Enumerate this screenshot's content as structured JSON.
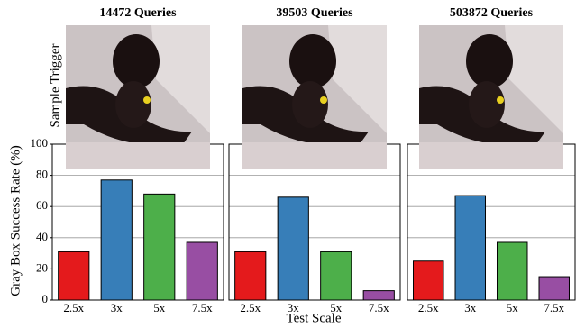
{
  "figure": {
    "ylabel": "Gray Box Success Rate (%)",
    "xlabel": "Test Scale",
    "image_label": "Sample Trigger"
  },
  "chart_data": [
    {
      "type": "bar",
      "title": "14472 Queries",
      "categories": [
        "2.5x",
        "3x",
        "5x",
        "7.5x"
      ],
      "values": [
        31,
        77,
        68,
        37
      ],
      "colors": [
        "#e41a1c",
        "#377eb8",
        "#4daf4a",
        "#984ea3"
      ],
      "ylim": [
        0,
        100
      ],
      "yticks": [
        0,
        20,
        40,
        60,
        80,
        100
      ],
      "grid": true
    },
    {
      "type": "bar",
      "title": "39503 Queries",
      "categories": [
        "2.5x",
        "3x",
        "5x",
        "7.5x"
      ],
      "values": [
        31,
        66,
        31,
        6
      ],
      "colors": [
        "#e41a1c",
        "#377eb8",
        "#4daf4a",
        "#984ea3"
      ],
      "ylim": [
        0,
        100
      ],
      "yticks": [
        0,
        20,
        40,
        60,
        80,
        100
      ],
      "grid": true
    },
    {
      "type": "bar",
      "title": "503872 Queries",
      "categories": [
        "2.5x",
        "3x",
        "5x",
        "7.5x"
      ],
      "values": [
        25,
        67,
        37,
        15
      ],
      "colors": [
        "#e41a1c",
        "#377eb8",
        "#4daf4a",
        "#984ea3"
      ],
      "ylim": [
        0,
        100
      ],
      "yticks": [
        0,
        20,
        40,
        60,
        80,
        100
      ],
      "grid": true
    }
  ]
}
